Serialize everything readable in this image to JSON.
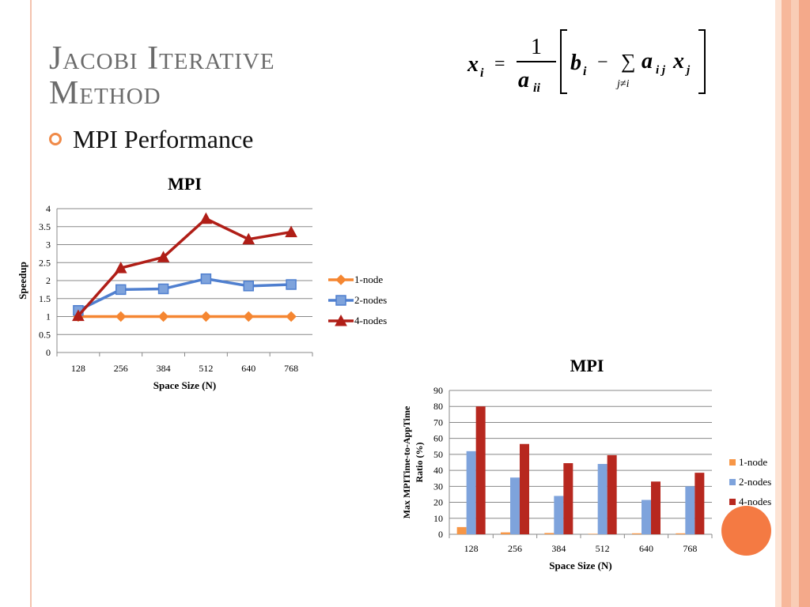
{
  "slide": {
    "title_line1": "Jacobi Iterative",
    "title_line2": "Method",
    "bullet": "MPI Performance"
  },
  "formula": {
    "lhs": "x",
    "lhs_sub": "i",
    "equals": "=",
    "numerator": "1",
    "denominator": "a",
    "denominator_sub": "ii",
    "b": "b",
    "b_sub": "i",
    "minus": "−",
    "sigma": "∑",
    "sum_index": "j≠i",
    "a": "a",
    "a_sub": "i j",
    "x": "x",
    "x_sub": "j"
  },
  "colors": {
    "accent": "#f47a43",
    "title": "#6b6b6b",
    "series_1node": "#f58631",
    "series_2nodes": "#4f7fcf",
    "series_4nodes": "#b01e17",
    "bar_1node": "#f79646",
    "bar_2nodes": "#7ea3dc",
    "bar_4nodes": "#b7281f",
    "band_1": "#fde3d4",
    "band_2": "#f7b89b",
    "band_3": "#f9cdb6",
    "band_4": "#f4a98a"
  },
  "chart_data": [
    {
      "type": "line",
      "title": "MPI",
      "xlabel": "Space Size (N)",
      "ylabel": "Speedup",
      "categories": [
        "128",
        "256",
        "384",
        "512",
        "640",
        "768"
      ],
      "ylim": [
        0,
        4
      ],
      "yticks": [
        "0",
        "0.5",
        "1",
        "1.5",
        "2",
        "2.5",
        "3",
        "3.5",
        "4"
      ],
      "grid": true,
      "legend_position": "right",
      "series": [
        {
          "name": "1-node",
          "marker": "diamond",
          "values": [
            1,
            1,
            1,
            1,
            1,
            1
          ]
        },
        {
          "name": "2-nodes",
          "marker": "square",
          "values": [
            1.17,
            1.75,
            1.77,
            2.05,
            1.85,
            1.89
          ]
        },
        {
          "name": "4-nodes",
          "marker": "triangle",
          "values": [
            1.02,
            2.35,
            2.65,
            3.72,
            3.15,
            3.35
          ]
        }
      ]
    },
    {
      "type": "bar",
      "title": "MPI",
      "xlabel": "Space Size (N)",
      "ylabel_line1": "Max MPITime-to-AppTime",
      "ylabel_line2": "Ratio (%)",
      "categories": [
        "128",
        "256",
        "384",
        "512",
        "640",
        "768"
      ],
      "ylim": [
        0,
        90
      ],
      "yticks": [
        "0",
        "10",
        "20",
        "30",
        "40",
        "50",
        "60",
        "70",
        "80",
        "90"
      ],
      "grid": true,
      "legend_position": "right",
      "series": [
        {
          "name": "1-node",
          "values": [
            4.5,
            1.2,
            0.8,
            0.3,
            0.6,
            0.6
          ]
        },
        {
          "name": "2-nodes",
          "values": [
            52,
            35.5,
            24,
            44,
            21.5,
            30
          ]
        },
        {
          "name": "4-nodes",
          "values": [
            80,
            56.5,
            44.5,
            49.5,
            33,
            38.5
          ]
        }
      ]
    }
  ]
}
